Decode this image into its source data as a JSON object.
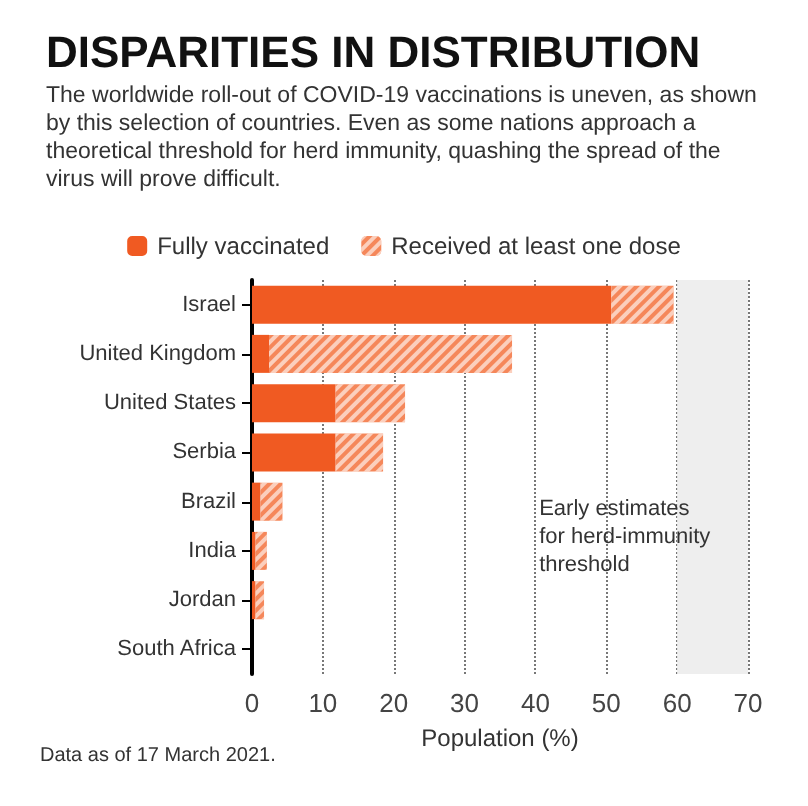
{
  "chart_data": {
    "type": "bar",
    "title": "DISPARITIES IN DISTRIBUTION",
    "subtitle": "The worldwide roll-out of COVID-19 vaccinations is uneven, as shown by this selection of countries. Even as some nations approach a theoretical threshold for herd immunity, quashing the spread of the virus will prove difficult.",
    "xlabel": "Population (%)",
    "orientation": "horizontal",
    "stacked": true,
    "categories": [
      "Israel",
      "United Kingdom",
      "United States",
      "Serbia",
      "Brazil",
      "India",
      "Jordan",
      "South Africa"
    ],
    "series": [
      {
        "name": "Fully vaccinated",
        "color": "#f05a22",
        "values": [
          50.7,
          2.4,
          11.8,
          11.8,
          1.2,
          0.5,
          0.5,
          0
        ]
      },
      {
        "name": "Received at least one dose",
        "color": "#f5875a",
        "values": [
          8.8,
          34.3,
          9.8,
          6.7,
          3.1,
          1.6,
          1.2,
          0
        ]
      }
    ],
    "xlim": [
      0,
      70
    ],
    "xticks": [
      0,
      10,
      20,
      30,
      40,
      50,
      60,
      70
    ],
    "grid": "x",
    "legend": "top",
    "bands": [
      {
        "axis": "x",
        "from": 60,
        "to": 70,
        "label": "Early estimates for herd-immunity threshold",
        "color": "#eeeeee"
      }
    ],
    "annotations": [
      "Data as of 17 March 2021."
    ]
  }
}
